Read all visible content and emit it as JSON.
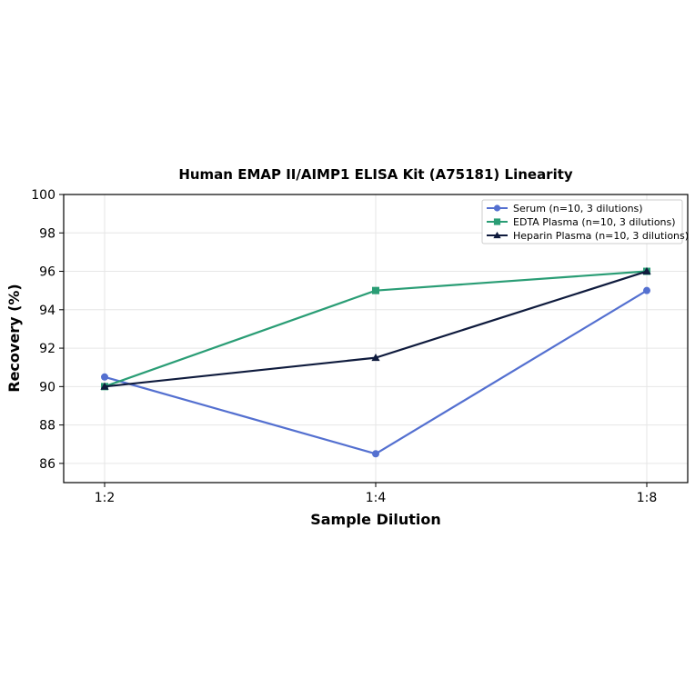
{
  "chart_data": {
    "type": "line",
    "title": "Human EMAP II/AIMP1 ELISA Kit (A75181) Linearity",
    "xlabel": "Sample Dilution",
    "ylabel": "Recovery (%)",
    "categories": [
      "1:2",
      "1:4",
      "1:8"
    ],
    "ylim": [
      85,
      100
    ],
    "yticks": [
      86,
      88,
      90,
      92,
      94,
      96,
      98,
      100
    ],
    "grid": true,
    "legend_position": "top-right",
    "series": [
      {
        "name": "Serum (n=10, 3 dilutions)",
        "values": [
          90.5,
          86.5,
          95
        ],
        "color": "#5470d0",
        "marker": "circle"
      },
      {
        "name": "EDTA Plasma (n=10, 3 dilutions)",
        "values": [
          90,
          95,
          96
        ],
        "color": "#2a9d75",
        "marker": "square"
      },
      {
        "name": "Heparin Plasma (n=10, 3 dilutions)",
        "values": [
          90,
          91.5,
          96
        ],
        "color": "#0f1b3d",
        "marker": "triangle"
      }
    ]
  }
}
